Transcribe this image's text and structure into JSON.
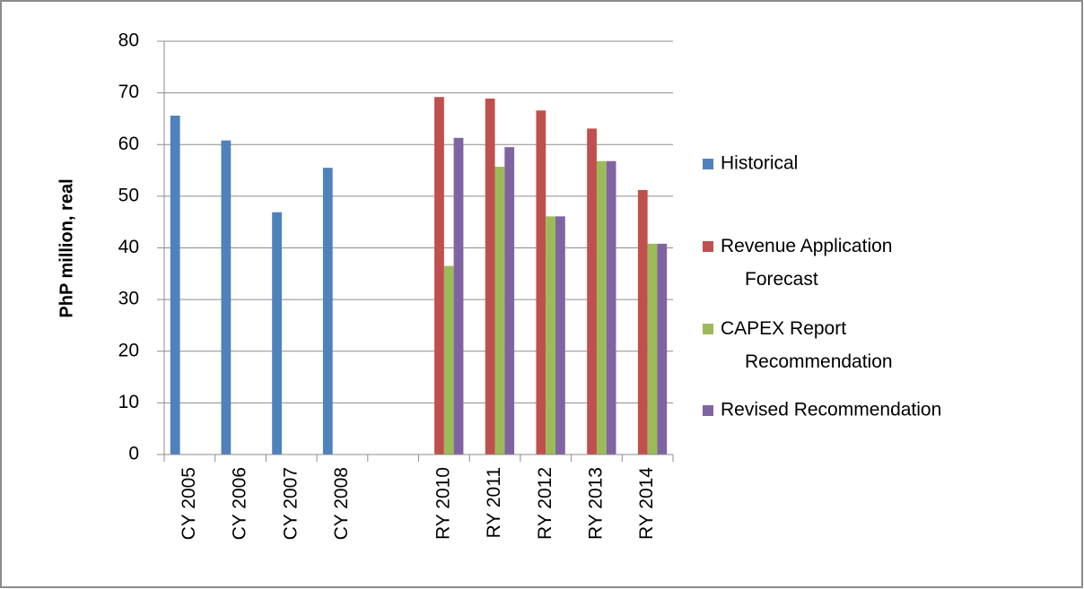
{
  "chart_data": {
    "type": "bar",
    "y_label": "PhP million, real",
    "categories": [
      "CY 2005",
      "CY 2006",
      "CY 2007",
      "CY 2008",
      null,
      "RY 2010",
      "RY 2011",
      "RY 2012",
      "RY 2013",
      "RY 2014"
    ],
    "series": [
      {
        "name": "Historical",
        "color": "#4f81bd",
        "values": [
          65.6,
          60.8,
          46.9,
          55.5,
          null,
          null,
          null,
          null,
          null,
          null
        ]
      },
      {
        "name": "Revenue Application Forecast",
        "color": "#c0504d",
        "values": [
          null,
          null,
          null,
          null,
          null,
          69.2,
          68.9,
          66.6,
          63.1,
          51.2
        ]
      },
      {
        "name": "CAPEX Report Recommendation",
        "color": "#9bbb59",
        "values": [
          null,
          null,
          null,
          null,
          null,
          36.5,
          55.7,
          46.1,
          56.8,
          40.8
        ]
      },
      {
        "name": "Revised Recommendation",
        "color": "#8064a2",
        "values": [
          null,
          null,
          null,
          null,
          null,
          61.3,
          59.5,
          46.1,
          56.8,
          40.8
        ]
      }
    ],
    "ylim": [
      0,
      80
    ],
    "yticks": [
      0,
      10,
      20,
      30,
      40,
      50,
      60,
      70,
      80
    ],
    "grid": true,
    "legend": "right"
  }
}
